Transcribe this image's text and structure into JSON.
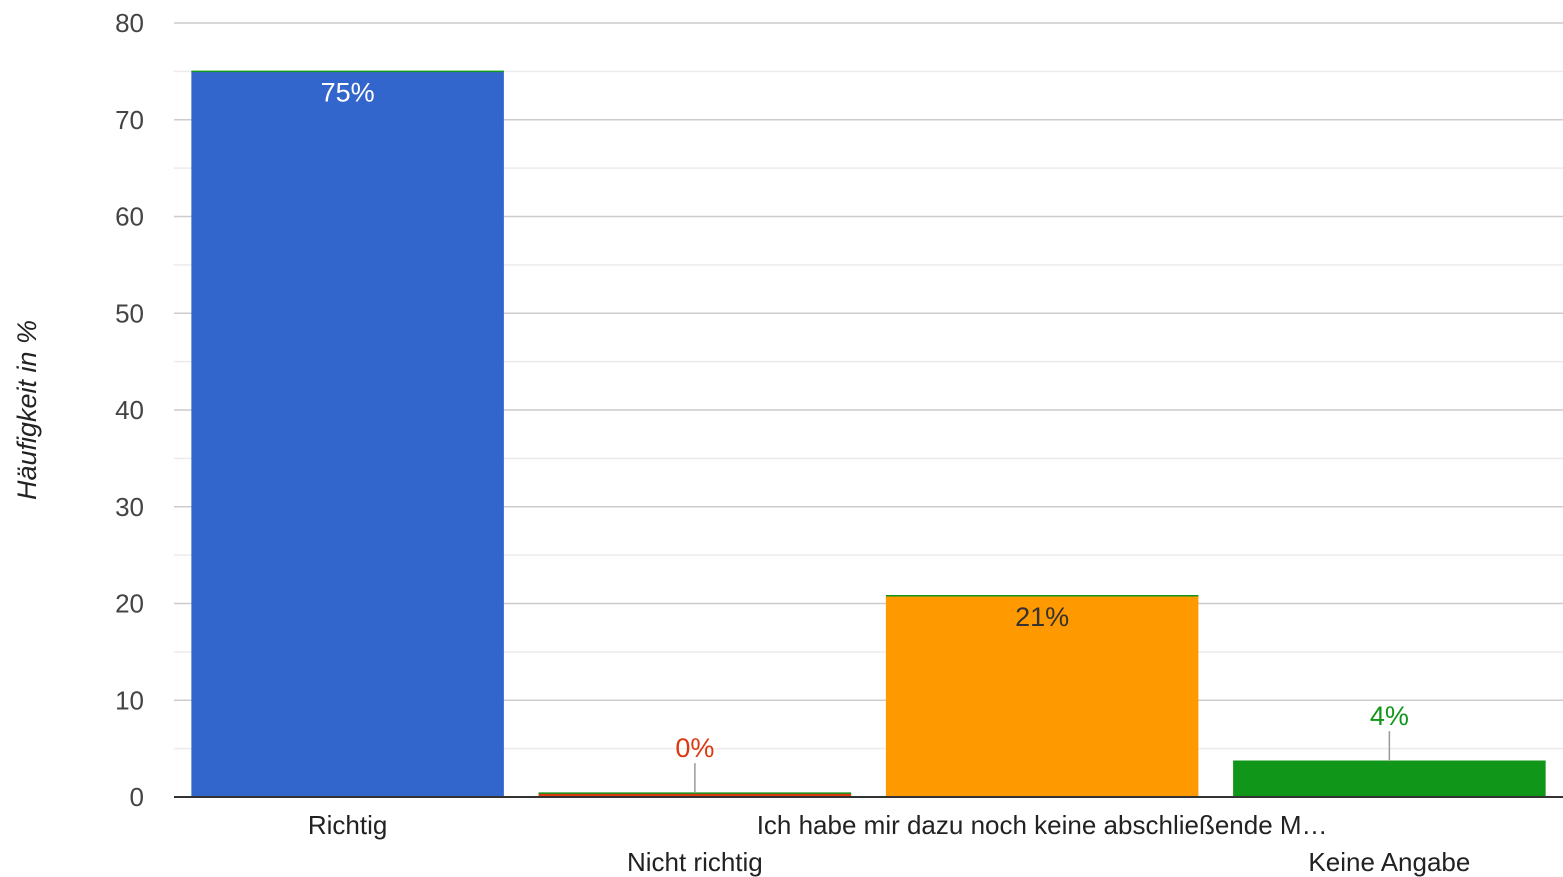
{
  "chart_data": {
    "type": "bar",
    "categories": [
      "Richtig",
      "Nicht richtig",
      "Ich habe mir dazu noch keine abschließende M…",
      "Keine Angabe"
    ],
    "values": [
      75,
      0.4,
      20.8,
      3.7
    ],
    "data_labels": [
      "75%",
      "0%",
      "21%",
      "4%"
    ],
    "colors": [
      "#3366cc",
      "#dc3912",
      "#ff9900",
      "#109618"
    ],
    "label_colors": [
      "#ffffff",
      "#dc3912",
      "#333333",
      "#109618"
    ],
    "label_inside": [
      true,
      false,
      true,
      false
    ],
    "title": "",
    "xlabel": "",
    "ylabel": "Häufigkeit in %",
    "ylim": [
      0,
      80
    ],
    "yticks": [
      0,
      10,
      20,
      30,
      40,
      50,
      60,
      70,
      80
    ],
    "grid": true,
    "legend": "none"
  }
}
